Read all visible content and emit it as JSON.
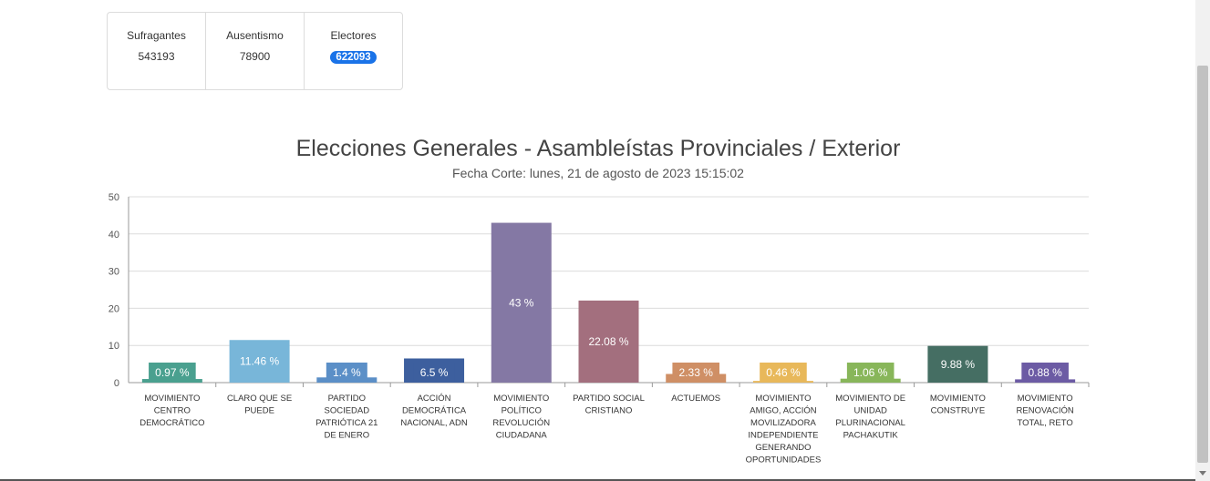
{
  "stats": {
    "sufragantes_label": "Sufragantes",
    "sufragantes_value": "543193",
    "ausentismo_label": "Ausentismo",
    "ausentismo_value": "78900",
    "electores_label": "Electores",
    "electores_value": "622093"
  },
  "chart_data": {
    "type": "bar",
    "title": "Elecciones Generales - Asambleístas Provinciales / Exterior",
    "subtitle": "Fecha Corte: lunes, 21 de agosto de 2023 15:15:02",
    "xlabel": "",
    "ylabel": "",
    "ylim": [
      0,
      50
    ],
    "yticks": [
      0,
      10,
      20,
      30,
      40,
      50
    ],
    "grid": true,
    "categories": [
      "MOVIMIENTO CENTRO DEMOCRÁTICO",
      "CLARO QUE SE PUEDE",
      "PARTIDO SOCIEDAD PATRIÓTICA 21 DE ENERO",
      "ACCIÓN DEMOCRÁTICA NACIONAL, ADN",
      "MOVIMIENTO POLÍTICO REVOLUCIÓN CIUDADANA",
      "PARTIDO SOCIAL CRISTIANO",
      "ACTUEMOS",
      "MOVIMIENTO AMIGO, ACCIÓN MOVILIZADORA INDEPENDIENTE GENERANDO OPORTUNIDADES",
      "MOVIMIENTO DE UNIDAD PLURINACIONAL PACHAKUTIK",
      "MOVIMIENTO CONSTRUYE",
      "MOVIMIENTO RENOVACIÓN TOTAL, RETO"
    ],
    "values": [
      0.97,
      11.46,
      1.4,
      6.5,
      43,
      22.08,
      2.33,
      0.46,
      1.06,
      9.88,
      0.88
    ],
    "data_labels": [
      "0.97 %",
      "11.46 %",
      "1.4 %",
      "6.5 %",
      "43 %",
      "22.08 %",
      "2.33 %",
      "0.46 %",
      "1.06 %",
      "9.88 %",
      "0.88 %"
    ],
    "colors": [
      "#4aa08f",
      "#78b6d9",
      "#5b8fc7",
      "#3d5f9e",
      "#8478a4",
      "#a36f7e",
      "#cf8f65",
      "#e8b85a",
      "#88b65a",
      "#456e63",
      "#6c5ba4"
    ]
  }
}
